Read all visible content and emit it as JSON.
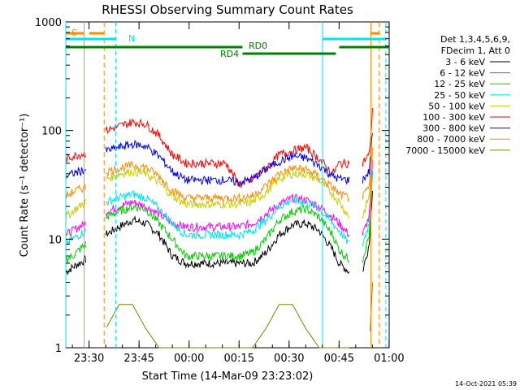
{
  "chart_data": {
    "type": "line",
    "title": "RHESSI Observing Summary Count Rates",
    "xlabel": "Start Time (14-Mar-09 23:23:02)",
    "ylabel": "Count Rate (s⁻¹ detector⁻¹)",
    "yscale": "log",
    "ylim": [
      1,
      1000
    ],
    "xlim_minutes_after_start": [
      0,
      97
    ],
    "ytick_labels": [
      "1",
      "10",
      "100",
      "1000"
    ],
    "xticks": [
      {
        "label": "23:30",
        "minute": 6.97
      },
      {
        "label": "23:45",
        "minute": 21.97
      },
      {
        "label": "00:00",
        "minute": 36.97
      },
      {
        "label": "00:15",
        "minute": 51.97
      },
      {
        "label": "00:30",
        "minute": 66.97
      },
      {
        "label": "00:45",
        "minute": 81.97
      },
      {
        "label": "01:00",
        "minute": 96.97
      }
    ],
    "legend_header": [
      "Det 1,3,4,5,6,9,",
      "FDecim 1, Att 0"
    ],
    "legend_position": "right",
    "timestamp": "14-Oct-2021 05:39",
    "flag_labels": {
      "saa": "S",
      "night": "N",
      "decim": "RD0",
      "decim2": "RD4"
    },
    "colors": {
      "night_line": "#00e5ee",
      "saa_line": "#ff8c00",
      "decim_line": "#008000"
    },
    "data_gaps_minutes": [
      [
        6,
        12
      ],
      [
        85,
        89
      ]
    ],
    "x_minutes": [
      0,
      2,
      4,
      6,
      12,
      16,
      20,
      24,
      28,
      32,
      36,
      40,
      44,
      48,
      52,
      56,
      60,
      64,
      68,
      72,
      76,
      80,
      82,
      85,
      89,
      91,
      92
    ],
    "series": [
      {
        "name": "3 - 6 keV",
        "color": "#000000",
        "values": [
          5,
          5.5,
          6,
          6.5,
          11,
          13,
          15,
          14,
          11,
          7,
          6,
          6,
          6,
          6,
          6,
          6,
          7.5,
          11,
          13.5,
          14,
          12,
          8,
          6,
          5,
          5,
          9,
          30
        ]
      },
      {
        "name": "6 - 12 keV",
        "color": "#ff00ff",
        "values": [
          11,
          12,
          13,
          14,
          18,
          20,
          22,
          20,
          17,
          14,
          13,
          13,
          13,
          13,
          13,
          14,
          17,
          21,
          24,
          23,
          20,
          16,
          14,
          11,
          11,
          16,
          50
        ]
      },
      {
        "name": "12 - 25 keV",
        "color": "#00cc00",
        "values": [
          6.5,
          7,
          8,
          9,
          16,
          18,
          20,
          19,
          14,
          10,
          7,
          7,
          7,
          7,
          7,
          7.5,
          10,
          15,
          18,
          19,
          16,
          11,
          8,
          6.5,
          6.5,
          11,
          40
        ]
      },
      {
        "name": "25 - 50 keV",
        "color": "#00e5ee",
        "values": [
          9,
          10,
          11,
          12,
          22,
          24,
          26,
          24,
          19,
          14,
          11,
          11,
          11,
          11,
          11,
          12,
          15,
          20,
          23,
          22,
          19,
          14,
          12,
          9,
          9,
          14,
          45
        ]
      },
      {
        "name": "50 - 100 keV",
        "color": "#cccc00",
        "values": [
          16,
          18,
          20,
          22,
          36,
          40,
          42,
          40,
          33,
          25,
          21,
          21,
          21,
          21,
          21,
          22,
          27,
          36,
          40,
          40,
          35,
          26,
          22,
          16,
          16,
          25,
          60
        ]
      },
      {
        "name": "100 - 300 keV",
        "color": "#ff0000",
        "values": [
          55,
          58,
          60,
          62,
          100,
          110,
          120,
          115,
          90,
          60,
          50,
          50,
          50,
          50,
          32,
          35,
          45,
          60,
          65,
          70,
          55,
          40,
          50,
          50,
          50,
          60,
          150
        ]
      },
      {
        "name": "300 - 800 keV",
        "color": "#0000ff",
        "values": [
          38,
          40,
          42,
          44,
          65,
          70,
          75,
          72,
          58,
          42,
          35,
          35,
          35,
          35,
          33,
          36,
          44,
          52,
          58,
          56,
          48,
          38,
          36,
          35,
          35,
          42,
          100
        ]
      },
      {
        "name": "800 - 7000 keV",
        "color": "#ff8c00",
        "values": [
          25,
          27,
          29,
          30,
          42,
          45,
          48,
          46,
          38,
          28,
          24,
          24,
          24,
          24,
          24,
          25,
          31,
          40,
          45,
          44,
          38,
          30,
          26,
          24,
          24,
          30,
          70
        ]
      },
      {
        "name": "7000 - 15000 keV",
        "color": "#808000",
        "values": [
          null,
          null,
          null,
          null,
          1.5,
          2.5,
          2.5,
          1.5,
          1,
          1,
          1,
          1,
          1,
          1,
          1,
          1,
          1.5,
          2.5,
          2.5,
          1.5,
          1,
          1,
          1,
          1,
          null,
          1,
          4
        ]
      }
    ]
  }
}
